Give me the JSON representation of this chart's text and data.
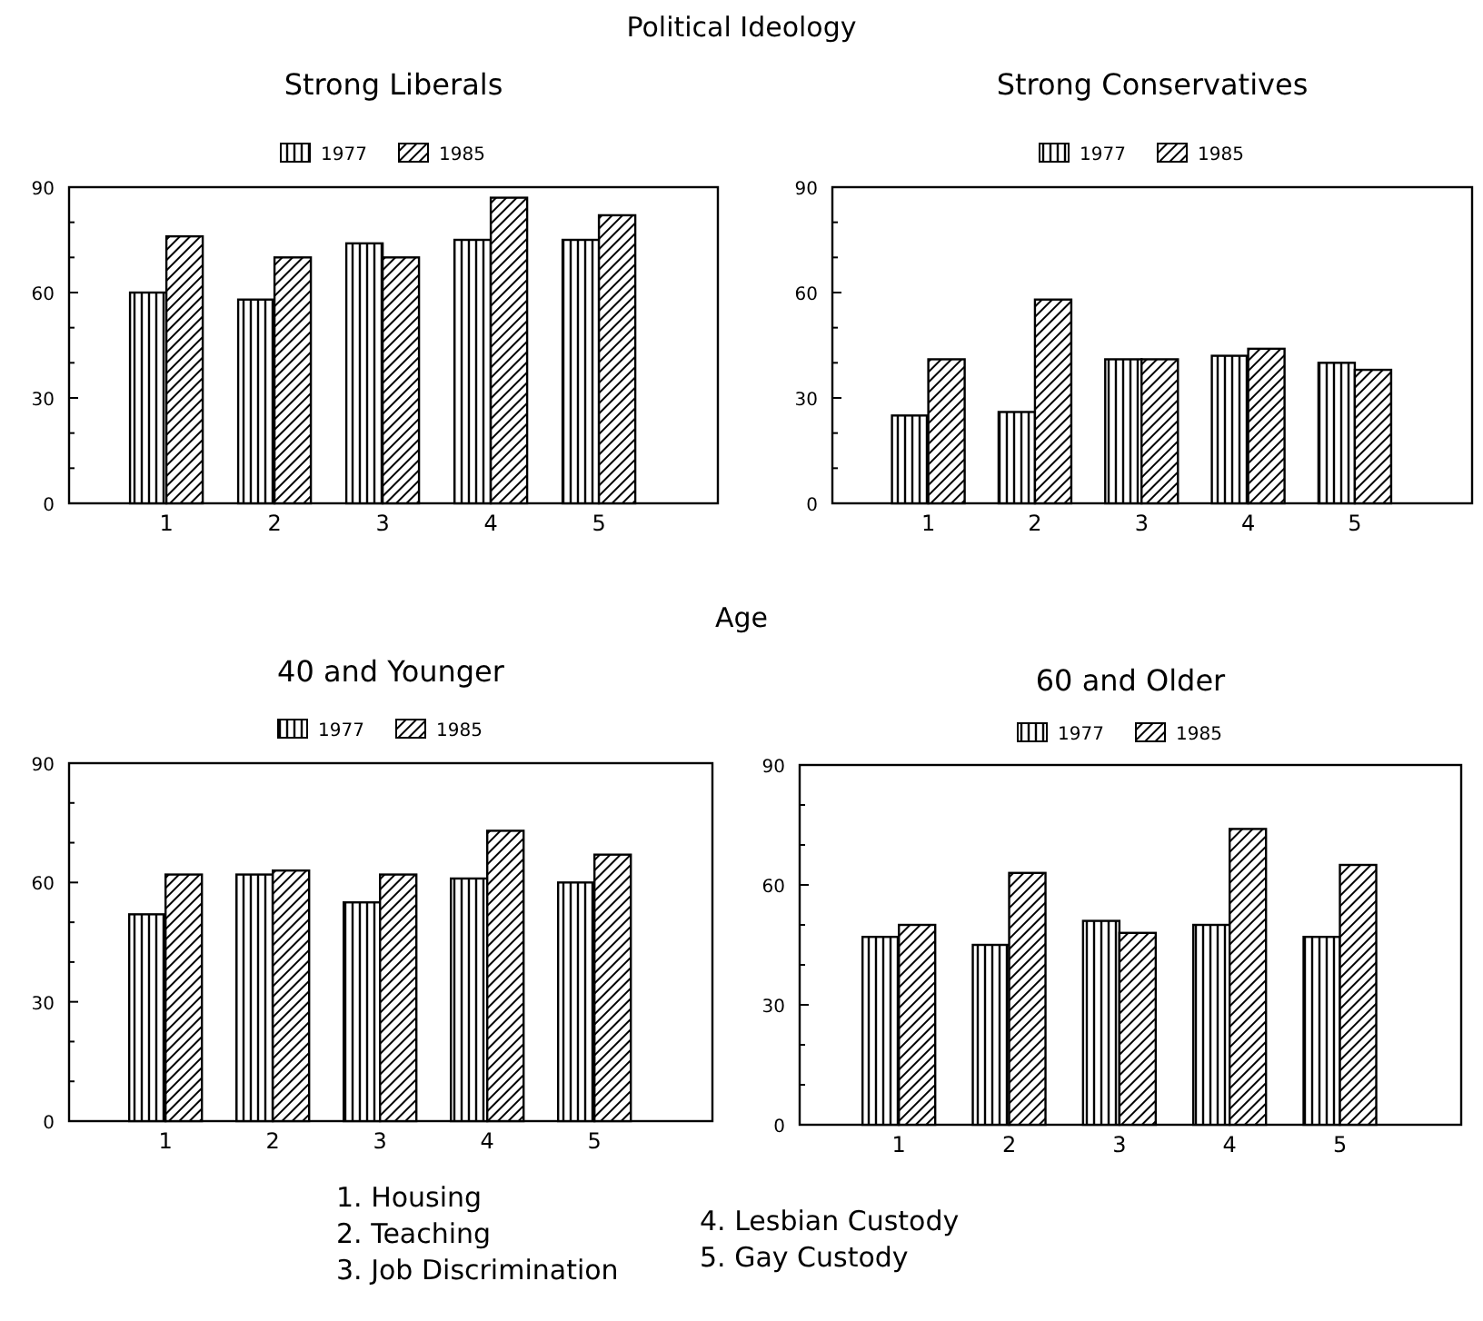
{
  "chart_data": [
    {
      "type": "bar",
      "title": "Strong Liberals",
      "annotations": [
        "Political Ideology"
      ],
      "categories": [
        "1",
        "2",
        "3",
        "4",
        "5"
      ],
      "series": [
        {
          "name": "1977",
          "color": "#000000",
          "values": [
            60,
            58,
            74,
            75,
            75
          ]
        },
        {
          "name": "1985",
          "color": "#000000",
          "values": [
            76,
            70,
            70,
            87,
            82
          ]
        }
      ],
      "ylim": [
        0,
        90
      ],
      "yticks": [
        0,
        {
          "value": 10,
          "label": null
        },
        {
          "value": 20,
          "label": null
        },
        30,
        {
          "value": 40,
          "label": null
        },
        {
          "value": 50,
          "label": null
        },
        60,
        {
          "value": 70,
          "label": null
        },
        {
          "value": 80,
          "label": null
        },
        90
      ],
      "legend": "top"
    },
    {
      "type": "bar",
      "title": "Strong Conservatives",
      "categories": [
        "1",
        "2",
        "3",
        "4",
        "5"
      ],
      "series": [
        {
          "name": "1977",
          "color": "#000000",
          "values": [
            25,
            26,
            41,
            42,
            40
          ]
        },
        {
          "name": "1985",
          "color": "#000000",
          "values": [
            41,
            58,
            41,
            44,
            38
          ]
        }
      ],
      "ylim": [
        0,
        90
      ],
      "yticks": [
        0,
        {
          "value": 10,
          "label": null
        },
        {
          "value": 20,
          "label": null
        },
        30,
        {
          "value": 40,
          "label": null
        },
        {
          "value": 50,
          "label": null
        },
        60,
        {
          "value": 70,
          "label": null
        },
        {
          "value": 80,
          "label": null
        },
        90
      ],
      "legend": "top"
    },
    {
      "type": "bar",
      "title": "40 and Younger",
      "annotations": [
        "Age",
        "1. Housing",
        "2. Teaching",
        "3. Job Discrimination"
      ],
      "categories": [
        "1",
        "2",
        "3",
        "4",
        "5"
      ],
      "series": [
        {
          "name": "1977",
          "color": "#000000",
          "values": [
            52,
            62,
            55,
            61,
            60
          ]
        },
        {
          "name": "1985",
          "color": "#000000",
          "values": [
            62,
            63,
            62,
            73,
            67
          ]
        }
      ],
      "ylim": [
        0,
        90
      ],
      "yticks": [
        0,
        {
          "value": 10,
          "label": null
        },
        {
          "value": 20,
          "label": null
        },
        30,
        {
          "value": 40,
          "label": null
        },
        {
          "value": 50,
          "label": null
        },
        60,
        {
          "value": 70,
          "label": null
        },
        {
          "value": 80,
          "label": null
        },
        90
      ],
      "legend": "top"
    },
    {
      "type": "bar",
      "title": "60 and Older",
      "annotations": [
        "4. Lesbian Custody",
        "5. Gay Custody"
      ],
      "categories": [
        "1",
        "2",
        "3",
        "4",
        "5"
      ],
      "series": [
        {
          "name": "1977",
          "color": "#000000",
          "values": [
            47,
            45,
            51,
            50,
            47
          ]
        },
        {
          "name": "1985",
          "color": "#000000",
          "values": [
            50,
            63,
            48,
            74,
            65
          ]
        }
      ],
      "ylim": [
        0,
        90
      ],
      "yticks": [
        0,
        {
          "value": 10,
          "label": null
        },
        {
          "value": 20,
          "label": null
        },
        30,
        {
          "value": 40,
          "label": null
        },
        {
          "value": 50,
          "label": null
        },
        60,
        {
          "value": 70,
          "label": null
        },
        {
          "value": 80,
          "label": null
        },
        90
      ],
      "legend": "top"
    }
  ]
}
